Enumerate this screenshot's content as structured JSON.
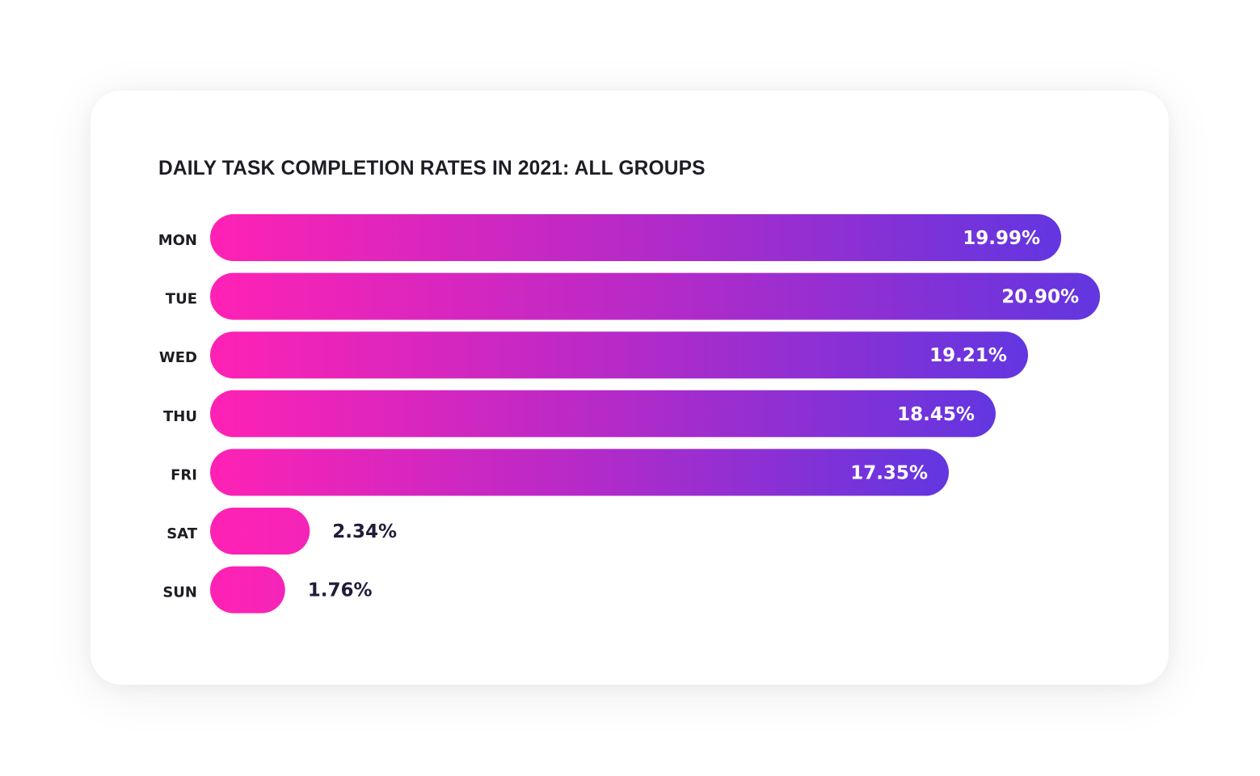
{
  "chart_data": {
    "type": "bar",
    "orientation": "horizontal",
    "title": "DAILY TASK COMPLETION RATES IN 2021: ALL GROUPS",
    "xlabel": "",
    "ylabel": "",
    "categories": [
      "MON",
      "TUE",
      "WED",
      "THU",
      "FRI",
      "SAT",
      "SUN"
    ],
    "values": [
      19.99,
      20.9,
      19.21,
      18.45,
      17.35,
      2.34,
      1.76
    ],
    "value_labels": [
      "19.99%",
      "20.90%",
      "19.21%",
      "18.45%",
      "17.35%",
      "2.34%",
      "1.76%"
    ],
    "unit": "%",
    "xlim": [
      0,
      20.9
    ],
    "grid": false,
    "legend": "none",
    "colors": {
      "gradient_start": "#ff22b4",
      "gradient_mid": "#b62ac8",
      "gradient_end": "#6236e0",
      "label_inside": "#ffffff",
      "label_outside": "#1f1d3a",
      "category_label": "#1e1c24"
    }
  }
}
